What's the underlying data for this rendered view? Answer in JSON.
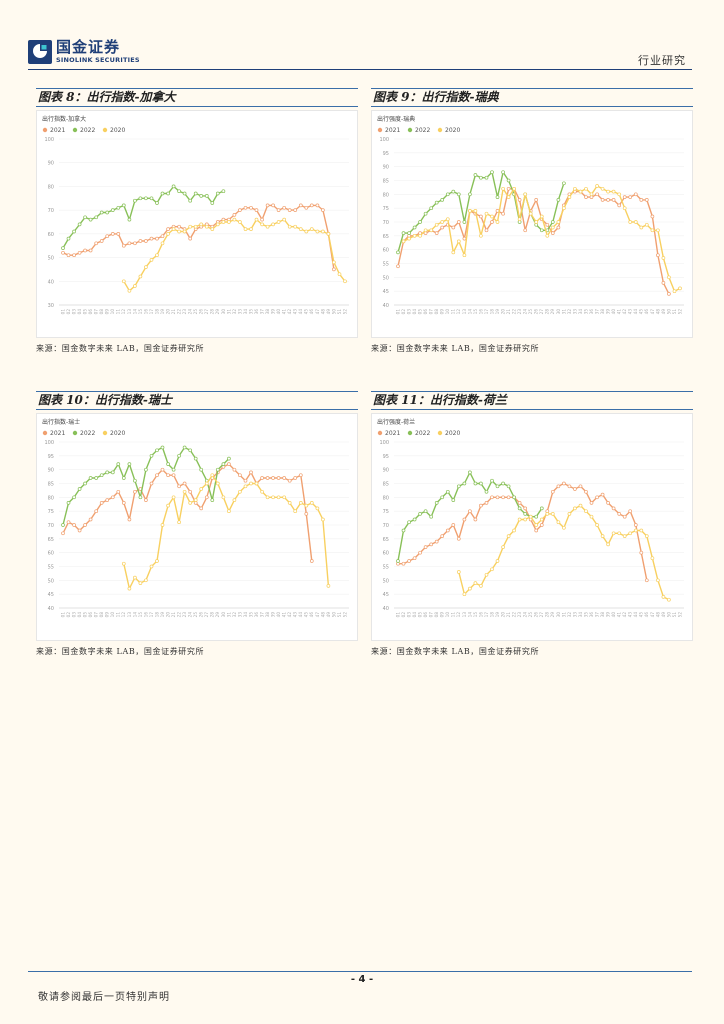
{
  "header": {
    "logo_cn": "国金证券",
    "logo_en": "SINOLINK SECURITIES",
    "section": "行业研究"
  },
  "colors": {
    "s2021": "#f0a070",
    "s2022": "#88c058",
    "s2020": "#f8d060"
  },
  "charts": [
    {
      "figure_title": "图表 8：出行指数-加拿大",
      "inner_title": "出行指数-加拿大",
      "legend": [
        "2021",
        "2022",
        "2020"
      ],
      "yticks": [
        30,
        40,
        50,
        60,
        70,
        80,
        90,
        100
      ],
      "ylim": [
        30,
        100
      ],
      "source": "来源：国金数字未来 LAB，国金证券研究所"
    },
    {
      "figure_title": "图表 9：出行指数-瑞典",
      "inner_title": "出行强度-瑞典",
      "legend": [
        "2021",
        "2022",
        "2020"
      ],
      "yticks": [
        40,
        45,
        50,
        55,
        60,
        65,
        70,
        75,
        80,
        85,
        90,
        95,
        100
      ],
      "ylim": [
        40,
        100
      ],
      "source": "来源：国金数字未来 LAB，国金证券研究所"
    },
    {
      "figure_title": "图表 10：出行指数-瑞士",
      "inner_title": "出行指数-瑞士",
      "legend": [
        "2021",
        "2022",
        "2020"
      ],
      "yticks": [
        40,
        45,
        50,
        55,
        60,
        65,
        70,
        75,
        80,
        85,
        90,
        95,
        100
      ],
      "ylim": [
        40,
        100
      ],
      "source": "来源：国金数字未来 LAB，国金证券研究所"
    },
    {
      "figure_title": "图表 11：出行指数-荷兰",
      "inner_title": "出行强度-荷兰",
      "legend": [
        "2021",
        "2022",
        "2020"
      ],
      "yticks": [
        40,
        45,
        50,
        55,
        60,
        65,
        70,
        75,
        80,
        85,
        90,
        95,
        100
      ],
      "ylim": [
        40,
        100
      ],
      "source": "来源：国金数字未来 LAB，国金证券研究所"
    }
  ],
  "chart_data": [
    {
      "type": "line",
      "x": [
        1,
        2,
        3,
        4,
        5,
        6,
        7,
        8,
        9,
        10,
        11,
        12,
        13,
        14,
        15,
        16,
        17,
        18,
        19,
        20,
        21,
        22,
        23,
        24,
        25,
        26,
        27,
        28,
        29,
        30,
        31,
        32,
        33,
        34,
        35,
        36,
        37,
        38,
        39,
        40,
        41,
        42,
        43,
        44,
        45,
        46,
        47,
        48,
        49,
        50,
        51,
        52
      ],
      "ylim": [
        30,
        100
      ],
      "series": [
        {
          "name": "2021",
          "values": [
            52,
            51,
            51,
            52,
            53,
            53,
            56,
            57,
            59,
            60,
            60,
            55,
            56,
            56,
            57,
            57,
            58,
            58,
            59,
            62,
            63,
            63,
            62,
            58,
            62,
            63,
            64,
            63,
            65,
            66,
            66,
            68,
            70,
            71,
            71,
            70,
            66,
            72,
            72,
            70,
            71,
            70,
            70,
            72,
            71,
            72,
            72,
            70,
            60,
            45,
            null,
            null
          ]
        },
        {
          "name": "2022",
          "values": [
            54,
            58,
            61,
            64,
            67,
            66,
            67,
            69,
            69,
            70,
            71,
            72,
            66,
            74,
            75,
            75,
            75,
            73,
            77,
            77,
            80,
            78,
            77,
            74,
            77,
            76,
            76,
            73,
            77,
            78,
            null,
            null,
            null,
            null,
            null,
            null,
            null,
            null,
            null,
            null,
            null,
            null,
            null,
            null,
            null,
            null,
            null,
            null,
            null,
            null,
            null,
            null
          ]
        },
        {
          "name": "2020",
          "values": [
            null,
            null,
            null,
            null,
            null,
            null,
            null,
            null,
            null,
            null,
            null,
            40,
            36,
            38,
            42,
            46,
            49,
            51,
            56,
            60,
            62,
            61,
            61,
            63,
            63,
            64,
            63,
            62,
            64,
            65,
            65,
            66,
            65,
            62,
            62,
            66,
            64,
            63,
            64,
            65,
            66,
            63,
            63,
            62,
            61,
            62,
            61,
            61,
            60,
            48,
            43,
            40
          ]
        }
      ]
    },
    {
      "type": "line",
      "x": [
        1,
        2,
        3,
        4,
        5,
        6,
        7,
        8,
        9,
        10,
        11,
        12,
        13,
        14,
        15,
        16,
        17,
        18,
        19,
        20,
        21,
        22,
        23,
        24,
        25,
        26,
        27,
        28,
        29,
        30,
        31,
        32,
        33,
        34,
        35,
        36,
        37,
        38,
        39,
        40,
        41,
        42,
        43,
        44,
        45,
        46,
        47,
        48,
        49,
        50,
        51,
        52
      ],
      "ylim": [
        40,
        100
      ],
      "series": [
        {
          "name": "2021",
          "values": [
            54,
            63,
            65,
            65,
            66,
            66,
            67,
            66,
            68,
            69,
            68,
            70,
            64,
            74,
            73,
            72,
            67,
            70,
            74,
            73,
            82,
            82,
            78,
            67,
            74,
            78,
            71,
            69,
            66,
            68,
            76,
            80,
            81,
            81,
            79,
            79,
            80,
            78,
            78,
            78,
            76,
            79,
            79,
            80,
            78,
            78,
            72,
            58,
            48,
            44,
            null,
            null
          ]
        },
        {
          "name": "2022",
          "values": [
            59,
            66,
            66,
            68,
            70,
            73,
            75,
            77,
            78,
            80,
            81,
            80,
            70,
            80,
            87,
            86,
            86,
            88,
            79,
            88,
            85,
            80,
            70,
            80,
            73,
            69,
            67,
            67,
            70,
            78,
            84,
            null,
            null,
            null,
            null,
            null,
            null,
            null,
            null,
            null,
            null,
            null,
            null,
            null,
            null,
            null,
            null,
            null,
            null,
            null,
            null,
            null
          ]
        },
        {
          "name": "2020",
          "values": [
            null,
            63,
            64,
            65,
            65,
            67,
            67,
            69,
            70,
            71,
            59,
            63,
            58,
            74,
            74,
            65,
            73,
            72,
            70,
            82,
            79,
            82,
            71,
            80,
            73,
            70,
            72,
            65,
            68,
            70,
            75,
            79,
            82,
            81,
            82,
            80,
            83,
            82,
            81,
            81,
            80,
            75,
            70,
            70,
            68,
            69,
            67,
            67,
            57,
            50,
            45,
            46
          ]
        }
      ]
    },
    {
      "type": "line",
      "x": [
        1,
        2,
        3,
        4,
        5,
        6,
        7,
        8,
        9,
        10,
        11,
        12,
        13,
        14,
        15,
        16,
        17,
        18,
        19,
        20,
        21,
        22,
        23,
        24,
        25,
        26,
        27,
        28,
        29,
        30,
        31,
        32,
        33,
        34,
        35,
        36,
        37,
        38,
        39,
        40,
        41,
        42,
        43,
        44,
        45,
        46,
        47,
        48,
        49,
        50,
        51,
        52
      ],
      "ylim": [
        40,
        100
      ],
      "series": [
        {
          "name": "2021",
          "values": [
            67,
            71,
            70,
            68,
            70,
            72,
            75,
            78,
            79,
            80,
            82,
            78,
            72,
            82,
            83,
            79,
            85,
            88,
            90,
            88,
            88,
            84,
            85,
            82,
            78,
            76,
            80,
            87,
            89,
            91,
            92,
            90,
            88,
            86,
            89,
            85,
            87,
            87,
            87,
            87,
            87,
            86,
            87,
            88,
            74,
            57,
            null,
            null,
            null,
            null,
            null,
            null
          ]
        },
        {
          "name": "2022",
          "values": [
            70,
            78,
            80,
            83,
            85,
            87,
            87,
            88,
            89,
            89,
            92,
            87,
            92,
            86,
            80,
            90,
            95,
            97,
            98,
            92,
            90,
            95,
            98,
            97,
            94,
            90,
            86,
            79,
            90,
            92,
            94,
            null,
            null,
            null,
            null,
            null,
            null,
            null,
            null,
            null,
            null,
            null,
            null,
            null,
            null,
            null,
            null,
            null,
            null,
            null,
            null,
            null
          ]
        },
        {
          "name": "2020",
          "values": [
            null,
            null,
            null,
            null,
            null,
            null,
            null,
            null,
            null,
            null,
            null,
            56,
            47,
            51,
            49,
            50,
            55,
            57,
            70,
            77,
            80,
            71,
            82,
            78,
            79,
            83,
            85,
            88,
            85,
            80,
            75,
            79,
            82,
            84,
            85,
            85,
            82,
            80,
            80,
            80,
            80,
            78,
            75,
            78,
            77,
            78,
            76,
            72,
            48,
            null,
            null,
            null
          ]
        }
      ]
    },
    {
      "type": "line",
      "x": [
        1,
        2,
        3,
        4,
        5,
        6,
        7,
        8,
        9,
        10,
        11,
        12,
        13,
        14,
        15,
        16,
        17,
        18,
        19,
        20,
        21,
        22,
        23,
        24,
        25,
        26,
        27,
        28,
        29,
        30,
        31,
        32,
        33,
        34,
        35,
        36,
        37,
        38,
        39,
        40,
        41,
        42,
        43,
        44,
        45,
        46,
        47,
        48,
        49,
        50,
        51,
        52
      ],
      "ylim": [
        40,
        100
      ],
      "series": [
        {
          "name": "2021",
          "values": [
            56,
            56,
            57,
            58,
            60,
            62,
            63,
            64,
            66,
            68,
            70,
            65,
            72,
            75,
            72,
            77,
            78,
            80,
            80,
            80,
            80,
            80,
            78,
            76,
            72,
            68,
            70,
            75,
            82,
            84,
            85,
            84,
            83,
            84,
            82,
            78,
            80,
            81,
            78,
            76,
            74,
            73,
            75,
            70,
            60,
            50,
            null,
            null,
            null,
            null,
            null,
            null
          ]
        },
        {
          "name": "2022",
          "values": [
            57,
            68,
            71,
            72,
            74,
            75,
            73,
            78,
            80,
            82,
            79,
            84,
            85,
            89,
            85,
            85,
            82,
            86,
            84,
            85,
            84,
            80,
            76,
            74,
            73,
            73,
            76,
            null,
            null,
            null,
            null,
            null,
            null,
            null,
            null,
            null,
            null,
            null,
            null,
            null,
            null,
            null,
            null,
            null,
            null,
            null,
            null,
            null,
            null,
            null,
            null,
            null
          ]
        },
        {
          "name": "2020",
          "values": [
            null,
            null,
            null,
            null,
            null,
            null,
            null,
            null,
            null,
            null,
            null,
            53,
            45,
            47,
            49,
            48,
            52,
            54,
            57,
            62,
            66,
            68,
            72,
            72,
            73,
            70,
            72,
            74,
            74,
            71,
            69,
            74,
            76,
            77,
            75,
            73,
            70,
            66,
            63,
            67,
            67,
            66,
            67,
            68,
            68,
            66,
            58,
            50,
            44,
            43,
            null,
            null
          ]
        }
      ]
    }
  ],
  "sources": {},
  "footer": {
    "page": "- 4 -",
    "disclaimer": "敬请参阅最后一页特别声明"
  }
}
